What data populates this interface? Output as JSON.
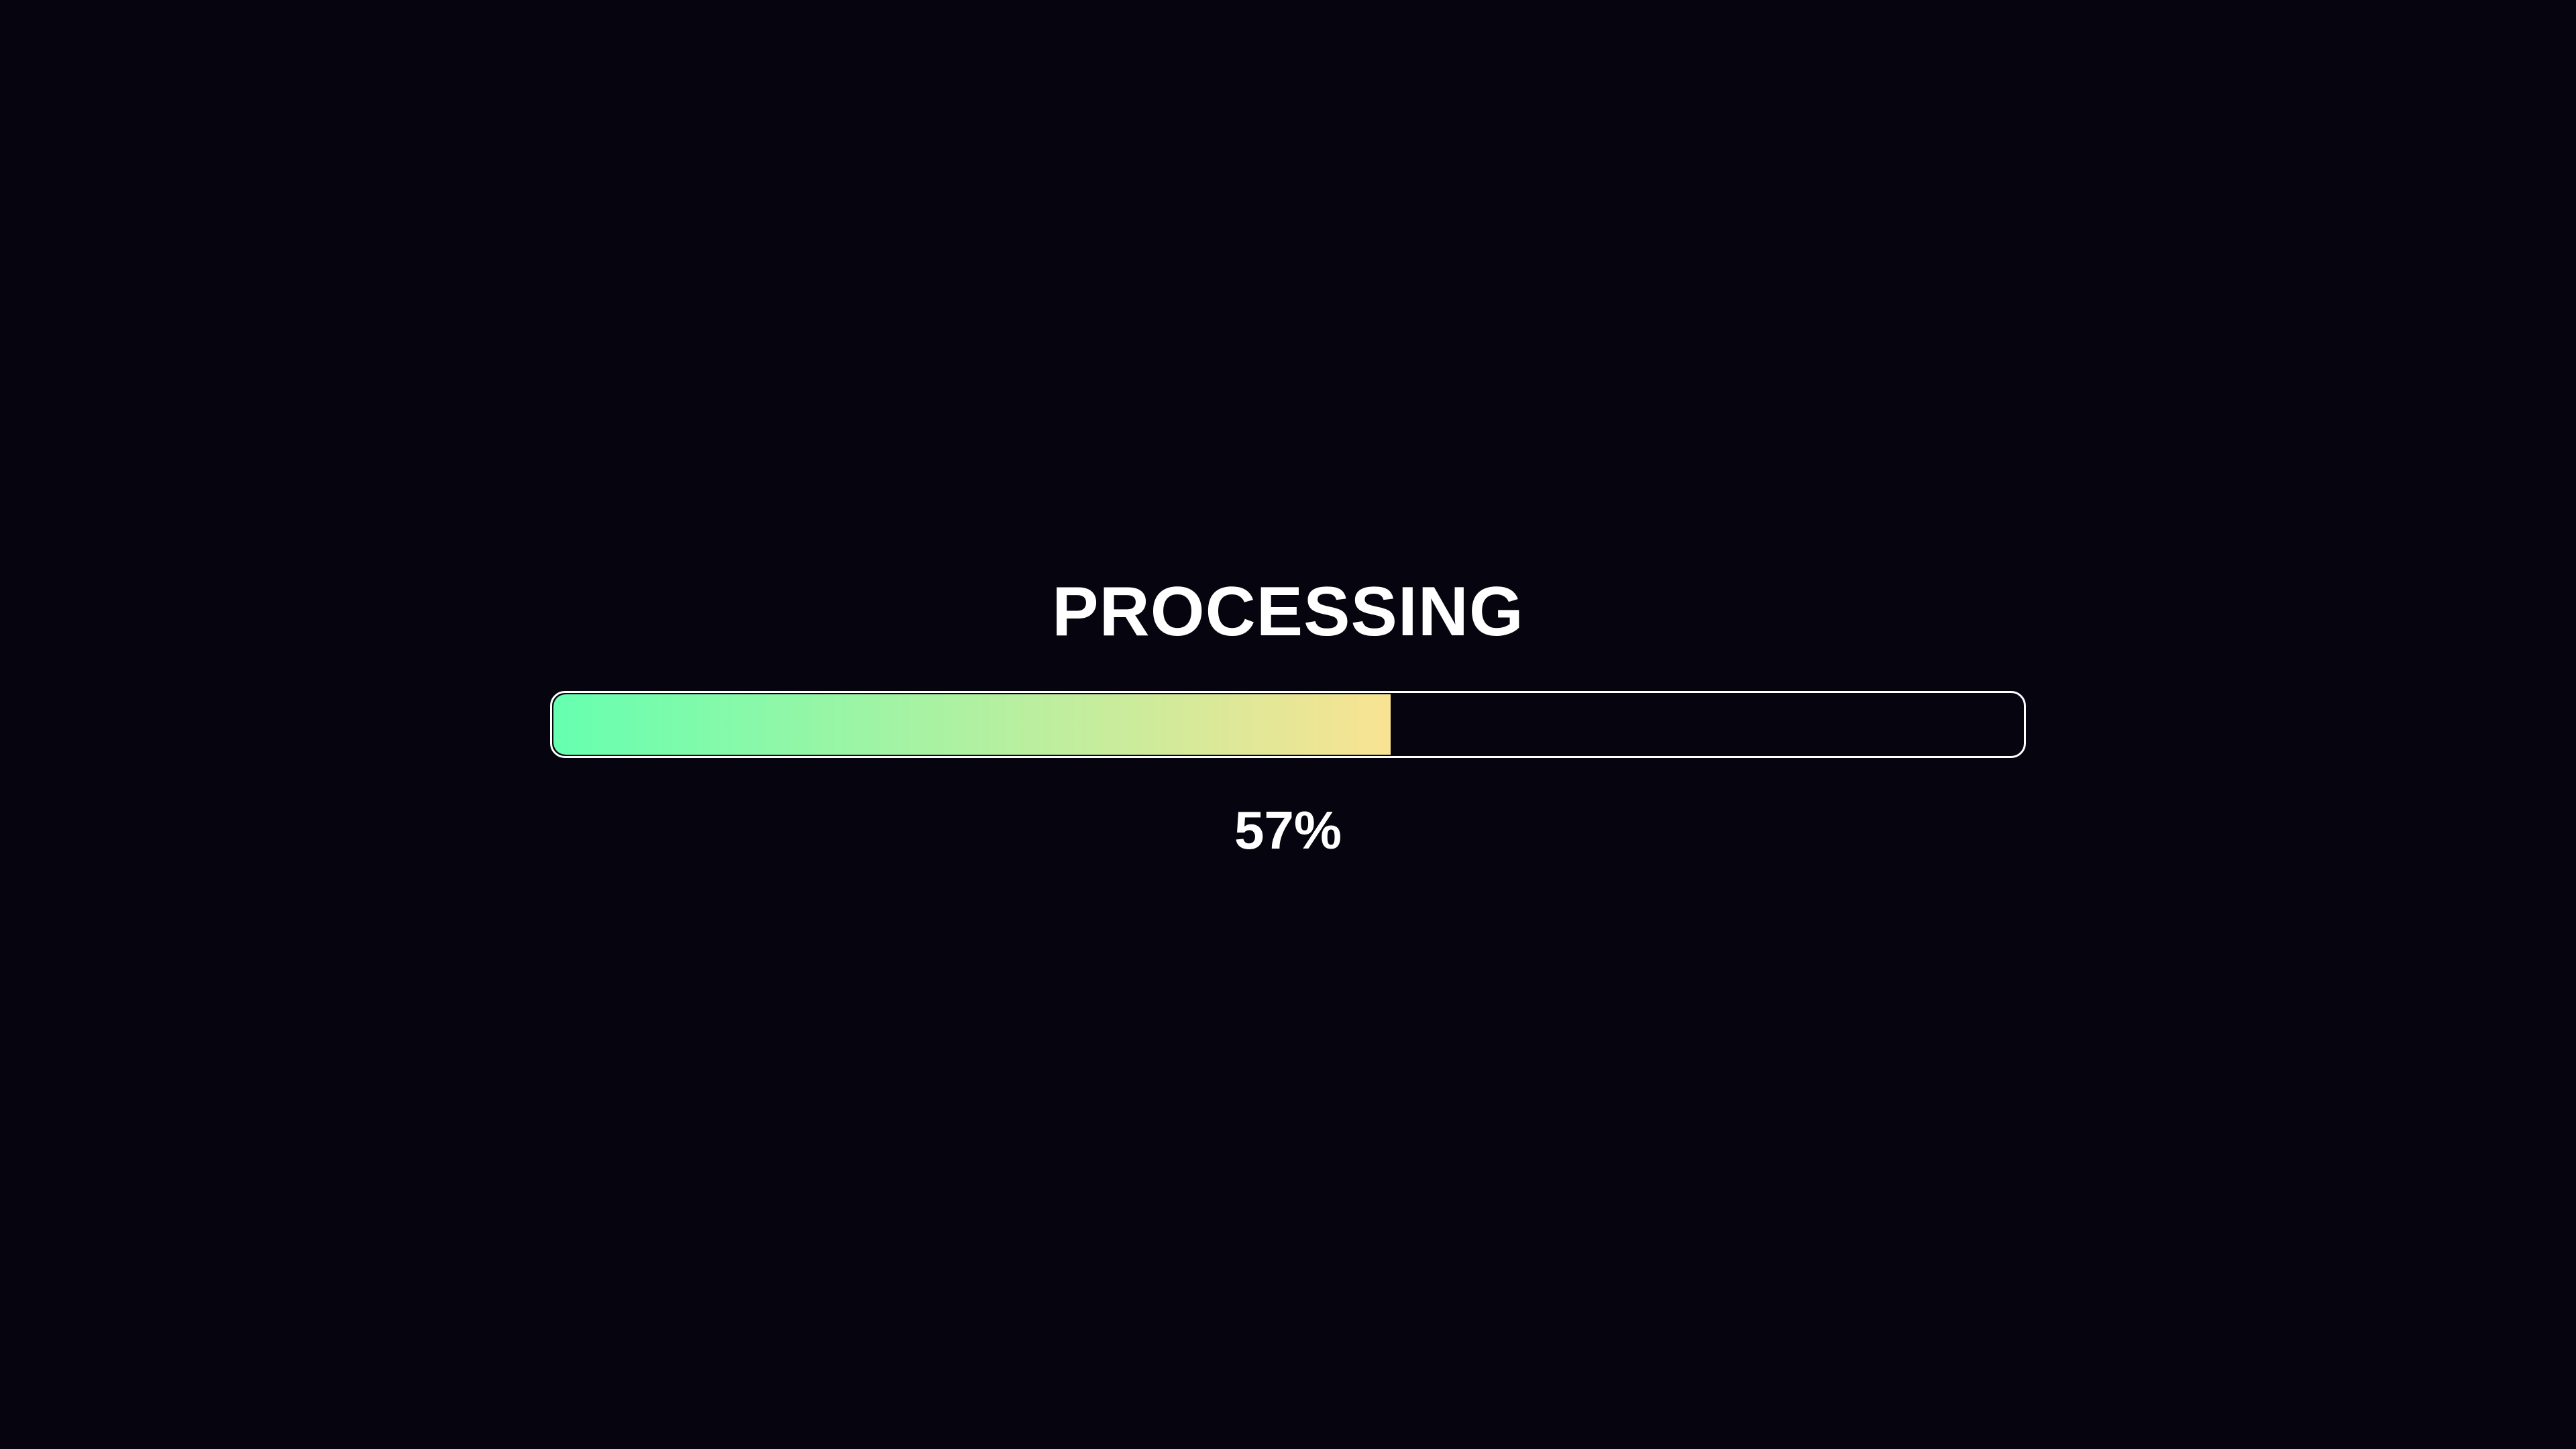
{
  "title": "PROCESSING",
  "progress": {
    "value": 57,
    "label": "57%",
    "gradient_start": "#66ffb0",
    "gradient_end": "#f9e392"
  },
  "colors": {
    "background": "#06050f",
    "border": "#ffffff",
    "text": "#ffffff"
  }
}
